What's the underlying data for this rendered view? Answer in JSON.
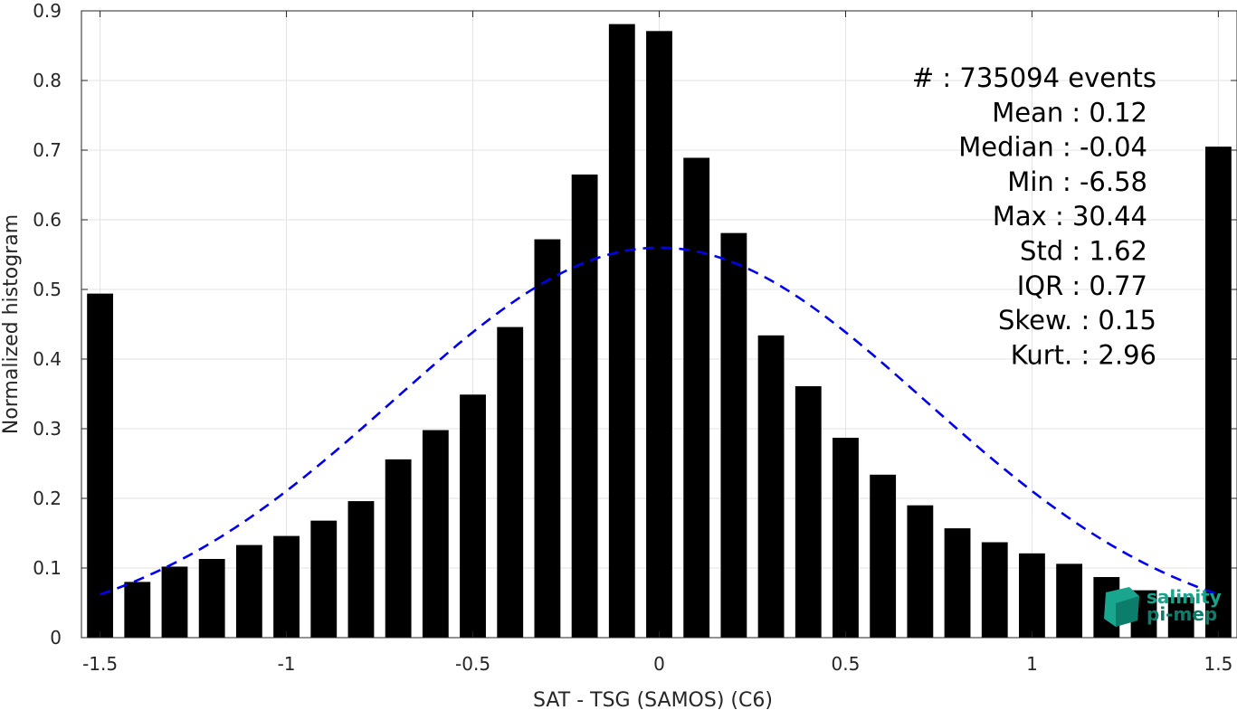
{
  "chart_data": {
    "type": "bar",
    "title": "",
    "xlabel": "SAT - TSG (SAMOS) (C6)",
    "ylabel": "Normalized histogram",
    "xlim": [
      -1.55,
      1.55
    ],
    "ylim": [
      0,
      0.9
    ],
    "grid": true,
    "x_ticks": [
      -1.5,
      -1,
      -0.5,
      0,
      0.5,
      1,
      1.5
    ],
    "x_tick_labels": [
      "-1.5",
      "-1",
      "-0.5",
      "0",
      "0.5",
      "1",
      "1.5"
    ],
    "y_ticks": [
      0,
      0.1,
      0.2,
      0.3,
      0.4,
      0.5,
      0.6,
      0.7,
      0.8,
      0.9
    ],
    "y_tick_labels": [
      "0",
      "0.1",
      "0.2",
      "0.3",
      "0.4",
      "0.5",
      "0.6",
      "0.7",
      "0.8",
      "0.9"
    ],
    "bar_color": "#000000",
    "bar_width": 0.07,
    "x": [
      -1.5,
      -1.4,
      -1.3,
      -1.2,
      -1.1,
      -1.0,
      -0.9,
      -0.8,
      -0.7,
      -0.6,
      -0.5,
      -0.4,
      -0.3,
      -0.2,
      -0.1,
      0.0,
      0.1,
      0.2,
      0.3,
      0.4,
      0.5,
      0.6,
      0.7,
      0.8,
      0.9,
      1.0,
      1.1,
      1.2,
      1.3,
      1.4,
      1.5
    ],
    "values": [
      0.494,
      0.08,
      0.102,
      0.113,
      0.133,
      0.146,
      0.168,
      0.196,
      0.256,
      0.298,
      0.349,
      0.446,
      0.572,
      0.665,
      0.881,
      0.871,
      0.689,
      0.581,
      0.434,
      0.361,
      0.287,
      0.234,
      0.19,
      0.157,
      0.137,
      0.121,
      0.106,
      0.087,
      0.068,
      0.058,
      0.705
    ],
    "fit_curve": {
      "style": "dashed",
      "color": "#0000ee",
      "mean": 0.0,
      "std": 0.715,
      "peak": 0.56,
      "x_range": [
        -1.5,
        1.5
      ]
    }
  },
  "stats": [
    "#  : 735094 events",
    "Mean : 0.12",
    "Median : -0.04",
    "Min : -6.58",
    "Max : 30.44",
    "Std : 1.62",
    "IQR : 0.77",
    "Skew. : 0.15",
    "Kurt. : 2.96"
  ],
  "logo": {
    "line1": "salinity",
    "line2": "pi-mep",
    "color": "#1aa38c"
  }
}
